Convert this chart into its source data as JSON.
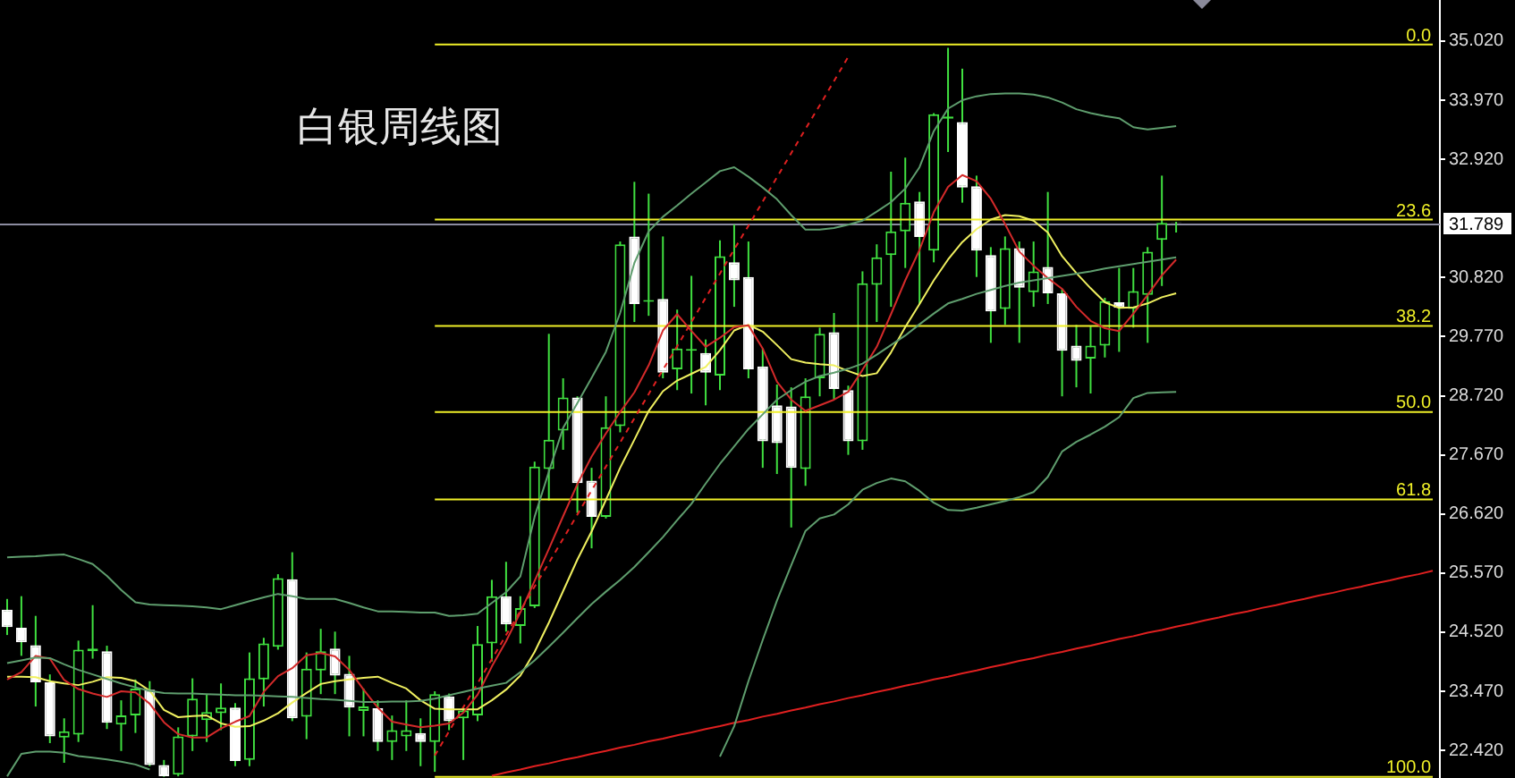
{
  "chart_data": {
    "type": "candlestick",
    "title": "白银周线图",
    "tick_labels": "y",
    "grid": false,
    "categories": [
      null,
      null,
      null,
      null,
      null,
      null,
      null,
      null,
      null,
      null,
      null,
      null,
      null,
      null,
      null,
      null,
      null,
      null,
      null,
      null,
      null,
      null,
      null,
      null,
      null,
      null,
      null,
      null,
      null,
      null,
      null,
      null,
      null,
      null,
      null,
      null,
      null,
      null,
      null,
      null,
      null,
      null,
      null,
      null,
      null,
      null,
      null,
      null,
      null,
      null,
      null,
      null,
      null,
      null,
      null,
      null,
      null,
      null,
      null,
      null,
      null,
      null,
      null,
      null,
      null,
      null,
      null,
      null,
      null,
      null,
      null,
      null,
      null,
      null,
      null,
      null,
      null,
      null,
      null,
      null,
      null,
      null,
      null,
      null,
      null,
      null,
      null,
      null,
      null,
      null,
      null,
      null,
      null,
      null,
      null,
      null,
      null,
      null,
      null,
      null,
      null
    ],
    "color": "#40e040",
    "colors": [
      "#ffffff",
      "#ffffff",
      "#ffffff",
      "#ffffff",
      "#40e040",
      "#40e040",
      "#40e040",
      "#ffffff",
      "#40e040",
      "#40e040",
      "#ffffff",
      "#ffffff",
      "#40e040",
      "#40e040",
      "#40e040",
      "#40e040",
      "#ffffff",
      "#40e040",
      "#40e040",
      "#40e040",
      "#ffffff",
      "#40e040",
      "#40e040",
      "#ffffff",
      "#ffffff",
      "#40e040",
      "#ffffff",
      "#40e040",
      "#40e040",
      "#ffffff",
      "#40e040",
      "#ffffff",
      "#40e040",
      "#40e040",
      "#40e040",
      "#ffffff",
      "#40e040",
      "#40e040",
      "#40e040",
      "#40e040",
      "#ffffff",
      "#ffffff",
      "#40e040",
      "#40e040",
      "#ffffff",
      "#40e040",
      "#ffffff",
      "#40e040",
      "#40e040",
      "#ffffff",
      "#40e040",
      "#ffffff",
      "#ffffff",
      "#ffffff",
      "#ffffff",
      "#ffffff",
      "#40e040",
      "#40e040",
      "#ffffff",
      "#ffffff",
      "#40e040",
      "#40e040",
      "#40e040",
      "#40e040",
      "#ffffff",
      "#40e040",
      "#40e040",
      "#ffffff",
      "#ffffff",
      "#ffffff",
      "#40e040",
      "#ffffff",
      "#40e040",
      "#ffffff",
      "#ffffff",
      "#ffffff",
      "#40e040",
      "#40e040",
      "#ffffff",
      "#40e040",
      "#40e040",
      "#40e040",
      "#ffffff",
      null,
      null,
      null,
      null,
      null,
      null,
      null,
      null,
      null,
      null,
      null,
      null,
      null,
      null,
      null,
      null,
      null,
      null
    ],
    "ohlc": [
      [
        24.92,
        25.11,
        24.47,
        24.61
      ],
      [
        24.6,
        25.16,
        24.1,
        24.34
      ],
      [
        24.29,
        24.81,
        23.2,
        23.63
      ],
      [
        23.63,
        23.77,
        22.55,
        22.67
      ],
      [
        22.65,
        22.99,
        22.2,
        22.76
      ],
      [
        22.7,
        24.37,
        22.57,
        24.21
      ],
      [
        24.18,
        25.0,
        24.05,
        24.23
      ],
      [
        24.18,
        24.28,
        22.8,
        22.91
      ],
      [
        22.88,
        23.31,
        22.41,
        23.04
      ],
      [
        23.04,
        23.68,
        22.73,
        23.52
      ],
      [
        23.5,
        23.65,
        22.14,
        22.16
      ],
      [
        22.16,
        22.25,
        21.95,
        21.96
      ],
      [
        21.99,
        22.83,
        21.96,
        22.67
      ],
      [
        22.67,
        23.7,
        22.41,
        23.34
      ],
      [
        22.96,
        23.42,
        22.57,
        23.1
      ],
      [
        23.08,
        23.61,
        22.78,
        23.18
      ],
      [
        23.18,
        23.26,
        22.14,
        22.23
      ],
      [
        22.25,
        24.16,
        22.14,
        23.7
      ],
      [
        23.68,
        24.42,
        23.2,
        24.32
      ],
      [
        24.26,
        25.55,
        24.21,
        25.48
      ],
      [
        25.46,
        25.94,
        22.94,
        22.99
      ],
      [
        23.02,
        24.16,
        22.62,
        23.87
      ],
      [
        23.84,
        24.58,
        23.42,
        24.18
      ],
      [
        24.23,
        24.53,
        23.42,
        23.75
      ],
      [
        23.78,
        24.1,
        22.67,
        23.18
      ],
      [
        23.12,
        23.52,
        22.67,
        23.2
      ],
      [
        23.17,
        23.31,
        22.41,
        22.57
      ],
      [
        22.57,
        23.04,
        22.25,
        22.78
      ],
      [
        22.67,
        23.31,
        22.41,
        22.78
      ],
      [
        22.73,
        22.99,
        22.14,
        22.57
      ],
      [
        22.57,
        23.47,
        22.04,
        23.42
      ],
      [
        23.38,
        23.43,
        22.78,
        22.94
      ],
      [
        22.99,
        23.2,
        22.25,
        23.13
      ],
      [
        23.04,
        24.63,
        22.94,
        24.31
      ],
      [
        24.32,
        25.45,
        24.0,
        25.16
      ],
      [
        25.16,
        25.77,
        24.53,
        24.66
      ],
      [
        24.63,
        25.16,
        24.32,
        24.95
      ],
      [
        24.98,
        27.55,
        24.95,
        27.46
      ],
      [
        27.42,
        29.82,
        26.86,
        27.94
      ],
      [
        28.1,
        29.03,
        27.76,
        28.69
      ],
      [
        28.69,
        28.71,
        26.64,
        27.17
      ],
      [
        27.21,
        27.44,
        26.01,
        26.57
      ],
      [
        26.57,
        28.71,
        26.54,
        28.16
      ],
      [
        28.18,
        31.46,
        28.07,
        31.41
      ],
      [
        31.55,
        32.52,
        30.03,
        30.35
      ],
      [
        30.39,
        32.31,
        30.14,
        30.42
      ],
      [
        30.44,
        31.55,
        29.03,
        29.13
      ],
      [
        29.19,
        30.25,
        28.82,
        29.56
      ],
      [
        29.52,
        30.85,
        28.76,
        29.55
      ],
      [
        29.48,
        29.72,
        28.55,
        29.13
      ],
      [
        29.08,
        31.48,
        28.82,
        31.2
      ],
      [
        31.09,
        31.76,
        30.3,
        30.77
      ],
      [
        30.83,
        31.46,
        29.03,
        29.19
      ],
      [
        29.24,
        29.56,
        27.44,
        27.91
      ],
      [
        28.55,
        28.92,
        27.33,
        27.88
      ],
      [
        28.53,
        28.87,
        26.38,
        27.44
      ],
      [
        27.42,
        29.03,
        27.12,
        28.71
      ],
      [
        29.03,
        29.93,
        28.71,
        29.82
      ],
      [
        29.85,
        30.19,
        28.66,
        28.84
      ],
      [
        28.82,
        28.9,
        27.67,
        27.91
      ],
      [
        27.91,
        30.93,
        27.76,
        30.72
      ],
      [
        30.69,
        31.41,
        30.03,
        31.18
      ],
      [
        31.22,
        32.7,
        30.3,
        31.64
      ],
      [
        31.64,
        32.95,
        30.99,
        32.15
      ],
      [
        32.17,
        32.34,
        30.35,
        31.54
      ],
      [
        31.3,
        33.74,
        31.09,
        33.72
      ],
      [
        33.64,
        34.9,
        33.05,
        33.68
      ],
      [
        33.58,
        34.53,
        32.15,
        32.42
      ],
      [
        32.44,
        32.63,
        30.83,
        31.3
      ],
      [
        31.22,
        31.36,
        29.66,
        30.22
      ],
      [
        30.26,
        31.55,
        29.98,
        31.34
      ],
      [
        31.34,
        31.46,
        29.66,
        30.64
      ],
      [
        30.56,
        31.46,
        30.3,
        30.93
      ],
      [
        31.01,
        32.34,
        30.35,
        30.54
      ],
      [
        30.54,
        30.61,
        28.71,
        29.52
      ],
      [
        29.61,
        29.98,
        28.87,
        29.34
      ],
      [
        29.38,
        29.95,
        28.76,
        29.61
      ],
      [
        29.61,
        30.46,
        29.4,
        30.4
      ],
      [
        30.38,
        30.99,
        29.5,
        30.28
      ],
      [
        30.26,
        30.99,
        29.93,
        30.58
      ],
      [
        30.51,
        31.36,
        29.66,
        31.28
      ],
      [
        31.49,
        32.63,
        30.67,
        31.79
      ],
      [
        31.8,
        31.81,
        31.62,
        31.789
      ],
      null,
      null,
      null,
      null,
      null,
      null,
      null,
      null,
      null,
      null,
      null,
      null,
      null,
      null,
      null,
      null,
      null,
      null
    ],
    "series": [
      {
        "type": "line",
        "color": "#5f9e6e",
        "values": [
          25.85,
          25.86,
          25.87,
          25.89,
          25.9,
          25.82,
          25.73,
          25.52,
          25.27,
          25.05,
          25.01,
          25.0,
          24.99,
          24.98,
          24.96,
          24.93,
          25.0,
          25.07,
          25.14,
          25.2,
          25.16,
          25.11,
          25.11,
          25.11,
          25.04,
          24.96,
          24.89,
          24.89,
          24.88,
          24.87,
          24.87,
          24.81,
          24.82,
          24.85,
          25.04,
          25.23,
          25.51,
          26.57,
          27.37,
          28.15,
          28.59,
          29.04,
          29.5,
          30.19,
          31.08,
          31.64,
          31.9,
          32.1,
          32.31,
          32.51,
          32.71,
          32.78,
          32.61,
          32.42,
          32.21,
          31.93,
          31.67,
          31.67,
          31.7,
          31.76,
          31.83,
          31.99,
          32.16,
          32.4,
          32.78,
          33.42,
          33.82,
          33.97,
          34.04,
          34.08,
          34.09,
          34.09,
          34.07,
          34.02,
          33.93,
          33.81,
          33.74,
          33.69,
          33.65,
          33.49,
          33.45,
          33.48,
          33.51,
          null,
          null,
          null,
          null,
          null,
          null,
          null,
          null,
          null,
          null,
          null,
          null,
          null,
          null,
          null,
          null,
          null,
          null
        ]
      },
      {
        "type": "line",
        "color": "#5f9e6e",
        "values": [
          23.97,
          24.02,
          24.07,
          24.06,
          23.95,
          23.85,
          23.77,
          23.69,
          23.61,
          23.54,
          23.48,
          23.44,
          23.43,
          23.43,
          23.42,
          23.41,
          23.4,
          23.4,
          23.39,
          23.38,
          23.37,
          23.35,
          23.33,
          23.32,
          23.3,
          23.28,
          23.28,
          23.29,
          23.29,
          23.3,
          23.34,
          23.4,
          23.46,
          23.52,
          23.57,
          23.62,
          23.81,
          24.02,
          24.26,
          24.51,
          24.77,
          25.02,
          25.24,
          25.45,
          25.68,
          25.94,
          26.21,
          26.51,
          26.8,
          27.16,
          27.51,
          27.82,
          28.13,
          28.39,
          28.65,
          28.82,
          28.97,
          29.07,
          29.13,
          29.2,
          29.29,
          29.45,
          29.62,
          29.79,
          29.99,
          30.18,
          30.36,
          30.44,
          30.53,
          30.6,
          30.67,
          30.73,
          30.77,
          30.81,
          30.85,
          30.89,
          30.93,
          30.98,
          31.02,
          31.06,
          31.1,
          31.14,
          31.18,
          null,
          null,
          null,
          null,
          null,
          null,
          null,
          null,
          null,
          null,
          null,
          null,
          null,
          null,
          null,
          null,
          null,
          null
        ]
      },
      {
        "type": "line",
        "color": "#5f9e6e",
        "values": [
          21.96,
          22.36,
          22.4,
          22.4,
          22.38,
          22.32,
          22.29,
          22.26,
          22.22,
          22.17,
          22.08,
          null,
          null,
          null,
          null,
          null,
          null,
          null,
          null,
          null,
          null,
          null,
          null,
          null,
          null,
          null,
          null,
          null,
          null,
          null,
          null,
          null,
          null,
          null,
          null,
          null,
          null,
          null,
          null,
          null,
          null,
          null,
          null,
          null,
          null,
          null,
          null,
          null,
          null,
          null,
          22.31,
          22.85,
          23.65,
          24.38,
          25.08,
          25.71,
          26.32,
          26.54,
          26.61,
          26.79,
          27.05,
          27.17,
          27.25,
          27.2,
          27.03,
          26.82,
          26.69,
          26.68,
          26.73,
          26.79,
          26.85,
          26.92,
          27.01,
          27.28,
          27.73,
          27.9,
          28.03,
          28.17,
          28.34,
          28.68,
          28.77,
          28.78,
          28.79,
          null,
          null,
          null,
          null,
          null,
          null,
          null,
          null,
          null,
          null,
          null,
          null,
          null,
          null,
          null,
          null,
          null,
          null
        ]
      },
      {
        "type": "line",
        "color": "#d42a2a",
        "values": [
          23.68,
          23.81,
          24.1,
          24.05,
          23.67,
          23.51,
          23.43,
          23.37,
          23.47,
          23.45,
          23.25,
          22.92,
          22.71,
          22.65,
          22.65,
          22.81,
          22.93,
          23.03,
          23.46,
          23.74,
          23.88,
          24.11,
          24.15,
          24.09,
          23.85,
          23.5,
          23.18,
          22.93,
          22.88,
          22.83,
          22.86,
          22.9,
          23.09,
          23.41,
          23.91,
          24.36,
          24.87,
          25.43,
          26.0,
          26.58,
          27.15,
          27.64,
          28.05,
          28.43,
          28.78,
          29.26,
          29.88,
          30.17,
          29.87,
          29.59,
          29.75,
          29.94,
          29.97,
          29.56,
          28.97,
          28.65,
          28.45,
          28.55,
          28.65,
          28.79,
          29.18,
          29.59,
          30.17,
          30.77,
          31.31,
          31.98,
          32.43,
          32.64,
          32.53,
          32.22,
          31.77,
          31.28,
          31.03,
          30.81,
          30.62,
          30.3,
          30.05,
          29.92,
          29.87,
          30.18,
          30.51,
          30.86,
          31.14,
          null,
          null,
          null,
          null,
          null,
          null,
          null,
          null,
          null,
          null,
          null,
          null,
          null,
          null,
          null,
          null,
          null,
          null
        ]
      },
      {
        "type": "line",
        "color": "#f0f060",
        "values": [
          23.73,
          23.73,
          23.72,
          23.65,
          23.61,
          23.58,
          23.64,
          23.72,
          23.71,
          23.65,
          23.48,
          23.14,
          23.01,
          23.03,
          23.04,
          22.9,
          22.84,
          22.85,
          22.95,
          23.08,
          23.27,
          23.44,
          23.6,
          23.65,
          23.68,
          23.71,
          23.73,
          23.62,
          23.52,
          23.31,
          23.16,
          23.15,
          23.15,
          23.15,
          23.31,
          23.5,
          23.75,
          24.17,
          24.69,
          25.25,
          25.81,
          26.31,
          26.87,
          27.44,
          27.94,
          28.45,
          28.8,
          28.99,
          29.11,
          29.23,
          29.53,
          29.88,
          29.98,
          29.86,
          29.62,
          29.37,
          29.31,
          29.28,
          29.26,
          29.16,
          29.07,
          29.12,
          29.49,
          29.94,
          30.35,
          30.77,
          31.14,
          31.45,
          31.68,
          31.85,
          31.93,
          31.91,
          31.83,
          31.62,
          31.2,
          30.9,
          30.63,
          30.38,
          30.28,
          30.29,
          30.36,
          30.47,
          30.54,
          null,
          null,
          null,
          null,
          null,
          null,
          null,
          null,
          null,
          null,
          null,
          null,
          null,
          null,
          null,
          null,
          null,
          null
        ]
      },
      {
        "type": "line",
        "color": "#e02020",
        "values": [
          null,
          null,
          null,
          null,
          null,
          null,
          null,
          null,
          null,
          null,
          null,
          null,
          null,
          null,
          null,
          null,
          null,
          null,
          null,
          null,
          null,
          null,
          null,
          null,
          null,
          null,
          null,
          null,
          null,
          null,
          null,
          null,
          null,
          null,
          21.97,
          22.03,
          22.08,
          22.14,
          22.19,
          22.25,
          22.3,
          22.36,
          22.41,
          22.47,
          22.52,
          22.58,
          22.63,
          22.69,
          22.74,
          22.8,
          22.85,
          22.91,
          22.96,
          23.02,
          23.07,
          23.13,
          23.18,
          23.24,
          23.29,
          23.35,
          23.4,
          23.46,
          23.51,
          23.57,
          23.62,
          23.68,
          23.73,
          23.79,
          23.84,
          23.9,
          23.95,
          24.01,
          24.06,
          24.12,
          24.17,
          24.23,
          24.28,
          24.34,
          24.4,
          24.45,
          24.51,
          24.56,
          24.62,
          24.67,
          24.73,
          24.78,
          24.84,
          24.89,
          24.95,
          25.0,
          25.06,
          25.11,
          25.17,
          25.22,
          25.28,
          25.33,
          25.39,
          25.44,
          25.5,
          25.55,
          25.61
        ]
      },
      {
        "type": "line",
        "color": "#e02020",
        "line_style": "dashed",
        "values": [
          null,
          null,
          null,
          null,
          null,
          null,
          null,
          null,
          null,
          null,
          null,
          null,
          null,
          null,
          null,
          null,
          null,
          null,
          null,
          null,
          null,
          null,
          null,
          null,
          null,
          null,
          null,
          null,
          null,
          null,
          22.33,
          22.76,
          23.19,
          23.61,
          24.04,
          24.47,
          24.9,
          25.33,
          25.75,
          26.18,
          26.61,
          27.04,
          27.46,
          27.89,
          28.32,
          28.75,
          29.18,
          29.6,
          30.03,
          30.46,
          30.89,
          31.32,
          31.74,
          32.17,
          32.6,
          33.03,
          33.46,
          33.88,
          34.31,
          34.74,
          null,
          null,
          null,
          null,
          null,
          null,
          null,
          null,
          null,
          null,
          null,
          null,
          null,
          null,
          null,
          null,
          null,
          null,
          null,
          null,
          null,
          null,
          null,
          null,
          null,
          null,
          null,
          null,
          null,
          null,
          null,
          null,
          null,
          null,
          null,
          null,
          null,
          null,
          null,
          null,
          null
        ]
      },
      {
        "type": "line",
        "name": "0.0",
        "color": "#f0f028",
        "values": [
          null,
          null,
          null,
          null,
          null,
          null,
          null,
          null,
          null,
          null,
          null,
          null,
          null,
          null,
          null,
          null,
          null,
          null,
          null,
          null,
          null,
          null,
          null,
          null,
          null,
          null,
          null,
          null,
          null,
          null,
          34.96,
          34.96,
          34.96,
          34.96,
          34.96,
          34.96,
          34.96,
          34.96,
          34.96,
          34.96,
          34.96,
          34.96,
          34.96,
          34.96,
          34.96,
          34.96,
          34.96,
          34.96,
          34.96,
          34.96,
          34.96,
          34.96,
          34.96,
          34.96,
          34.96,
          34.96,
          34.96,
          34.96,
          34.96,
          34.96,
          34.96,
          34.96,
          34.96,
          34.96,
          34.96,
          34.96,
          34.96,
          34.96,
          34.96,
          34.96,
          34.96,
          34.96,
          34.96,
          34.96,
          34.96,
          34.96,
          34.96,
          34.96,
          34.96,
          34.96,
          34.96,
          34.96,
          34.96,
          34.96,
          34.96,
          34.96,
          34.96,
          34.96,
          34.96,
          34.96,
          34.96,
          34.96,
          34.96,
          34.96,
          34.96,
          34.96,
          34.96,
          34.96,
          34.96,
          34.96,
          34.96
        ]
      },
      {
        "type": "line",
        "name": "23.6",
        "color": "#f0f028",
        "values": [
          null,
          null,
          null,
          null,
          null,
          null,
          null,
          null,
          null,
          null,
          null,
          null,
          null,
          null,
          null,
          null,
          null,
          null,
          null,
          null,
          null,
          null,
          null,
          null,
          null,
          null,
          null,
          null,
          null,
          null,
          31.85,
          31.85,
          31.85,
          31.85,
          31.85,
          31.85,
          31.85,
          31.85,
          31.85,
          31.85,
          31.85,
          31.85,
          31.85,
          31.85,
          31.85,
          31.85,
          31.85,
          31.85,
          31.85,
          31.85,
          31.85,
          31.85,
          31.85,
          31.85,
          31.85,
          31.85,
          31.85,
          31.85,
          31.85,
          31.85,
          31.85,
          31.85,
          31.85,
          31.85,
          31.85,
          31.85,
          31.85,
          31.85,
          31.85,
          31.85,
          31.85,
          31.85,
          31.85,
          31.85,
          31.85,
          31.85,
          31.85,
          31.85,
          31.85,
          31.85,
          31.85,
          31.85,
          31.85,
          31.85,
          31.85,
          31.85,
          31.85,
          31.85,
          31.85,
          31.85,
          31.85,
          31.85,
          31.85,
          31.85,
          31.85,
          31.85,
          31.85,
          31.85,
          31.85,
          31.85,
          31.85
        ]
      },
      {
        "type": "line",
        "name": "38.2",
        "color": "#f0f028",
        "values": [
          null,
          null,
          null,
          null,
          null,
          null,
          null,
          null,
          null,
          null,
          null,
          null,
          null,
          null,
          null,
          null,
          null,
          null,
          null,
          null,
          null,
          null,
          null,
          null,
          null,
          null,
          null,
          null,
          null,
          null,
          29.96,
          29.96,
          29.96,
          29.96,
          29.96,
          29.96,
          29.96,
          29.96,
          29.96,
          29.96,
          29.96,
          29.96,
          29.96,
          29.96,
          29.96,
          29.96,
          29.96,
          29.96,
          29.96,
          29.96,
          29.96,
          29.96,
          29.96,
          29.96,
          29.96,
          29.96,
          29.96,
          29.96,
          29.96,
          29.96,
          29.96,
          29.96,
          29.96,
          29.96,
          29.96,
          29.96,
          29.96,
          29.96,
          29.96,
          29.96,
          29.96,
          29.96,
          29.96,
          29.96,
          29.96,
          29.96,
          29.96,
          29.96,
          29.96,
          29.96,
          29.96,
          29.96,
          29.96,
          29.96,
          29.96,
          29.96,
          29.96,
          29.96,
          29.96,
          29.96,
          29.96,
          29.96,
          29.96,
          29.96,
          29.96,
          29.96,
          29.96,
          29.96,
          29.96,
          29.96,
          29.96
        ]
      },
      {
        "type": "line",
        "name": "50.0",
        "color": "#f0f028",
        "values": [
          null,
          null,
          null,
          null,
          null,
          null,
          null,
          null,
          null,
          null,
          null,
          null,
          null,
          null,
          null,
          null,
          null,
          null,
          null,
          null,
          null,
          null,
          null,
          null,
          null,
          null,
          null,
          null,
          null,
          null,
          28.43,
          28.43,
          28.43,
          28.43,
          28.43,
          28.43,
          28.43,
          28.43,
          28.43,
          28.43,
          28.43,
          28.43,
          28.43,
          28.43,
          28.43,
          28.43,
          28.43,
          28.43,
          28.43,
          28.43,
          28.43,
          28.43,
          28.43,
          28.43,
          28.43,
          28.43,
          28.43,
          28.43,
          28.43,
          28.43,
          28.43,
          28.43,
          28.43,
          28.43,
          28.43,
          28.43,
          28.43,
          28.43,
          28.43,
          28.43,
          28.43,
          28.43,
          28.43,
          28.43,
          28.43,
          28.43,
          28.43,
          28.43,
          28.43,
          28.43,
          28.43,
          28.43,
          28.43,
          28.43,
          28.43,
          28.43,
          28.43,
          28.43,
          28.43,
          28.43,
          28.43,
          28.43,
          28.43,
          28.43,
          28.43,
          28.43,
          28.43,
          28.43,
          28.43,
          28.43,
          28.43
        ]
      },
      {
        "type": "line",
        "name": "61.8",
        "color": "#f0f028",
        "values": [
          null,
          null,
          null,
          null,
          null,
          null,
          null,
          null,
          null,
          null,
          null,
          null,
          null,
          null,
          null,
          null,
          null,
          null,
          null,
          null,
          null,
          null,
          null,
          null,
          null,
          null,
          null,
          null,
          null,
          null,
          26.88,
          26.88,
          26.88,
          26.88,
          26.88,
          26.88,
          26.88,
          26.88,
          26.88,
          26.88,
          26.88,
          26.88,
          26.88,
          26.88,
          26.88,
          26.88,
          26.88,
          26.88,
          26.88,
          26.88,
          26.88,
          26.88,
          26.88,
          26.88,
          26.88,
          26.88,
          26.88,
          26.88,
          26.88,
          26.88,
          26.88,
          26.88,
          26.88,
          26.88,
          26.88,
          26.88,
          26.88,
          26.88,
          26.88,
          26.88,
          26.88,
          26.88,
          26.88,
          26.88,
          26.88,
          26.88,
          26.88,
          26.88,
          26.88,
          26.88,
          26.88,
          26.88,
          26.88,
          26.88,
          26.88,
          26.88,
          26.88,
          26.88,
          26.88,
          26.88,
          26.88,
          26.88,
          26.88,
          26.88,
          26.88,
          26.88,
          26.88,
          26.88,
          26.88,
          26.88,
          26.88
        ]
      },
      {
        "type": "line",
        "name": "100.0",
        "color": "#f0f028",
        "values": [
          null,
          null,
          null,
          null,
          null,
          null,
          null,
          null,
          null,
          null,
          null,
          null,
          null,
          null,
          null,
          null,
          null,
          null,
          null,
          null,
          null,
          null,
          null,
          null,
          null,
          null,
          null,
          null,
          null,
          null,
          21.95,
          21.95,
          21.95,
          21.95,
          21.95,
          21.95,
          21.95,
          21.95,
          21.95,
          21.95,
          21.95,
          21.95,
          21.95,
          21.95,
          21.95,
          21.95,
          21.95,
          21.95,
          21.95,
          21.95,
          21.95,
          21.95,
          21.95,
          21.95,
          21.95,
          21.95,
          21.95,
          21.95,
          21.95,
          21.95,
          21.95,
          21.95,
          21.95,
          21.95,
          21.95,
          21.95,
          21.95,
          21.95,
          21.95,
          21.95,
          21.95,
          21.95,
          21.95,
          21.95,
          21.95,
          21.95,
          21.95,
          21.95,
          21.95,
          21.95,
          21.95,
          21.95,
          21.95,
          21.95,
          21.95,
          21.95,
          21.95,
          21.95,
          21.95,
          21.95,
          21.95,
          21.95,
          21.95,
          21.95,
          21.95,
          21.95,
          21.95,
          21.95,
          21.95,
          21.95,
          21.95
        ]
      }
    ],
    "ylim": [
      21.93,
      35.75
    ],
    "yticks": [
      {
        "value": 22.42,
        "label": "22.420"
      },
      {
        "value": 23.47,
        "label": "23.470"
      },
      {
        "value": 24.52,
        "label": "24.520"
      },
      {
        "value": 25.57,
        "label": "25.570"
      },
      {
        "value": 26.62,
        "label": "26.620"
      },
      {
        "value": 27.67,
        "label": "27.670"
      },
      {
        "value": 28.72,
        "label": "28.720"
      },
      {
        "value": 29.77,
        "label": "29.770"
      },
      {
        "value": 30.82,
        "label": "30.820"
      },
      {
        "value": 32.92,
        "label": "32.920"
      },
      {
        "value": 33.97,
        "label": "33.970"
      },
      {
        "value": 35.02,
        "label": "35.020"
      }
    ],
    "ref_lines": [
      {
        "axis": "y",
        "value": 31.789,
        "color": "#8c8ca0"
      }
    ],
    "annotations": [
      {
        "text": "31.789",
        "y": 31.789
      }
    ]
  }
}
